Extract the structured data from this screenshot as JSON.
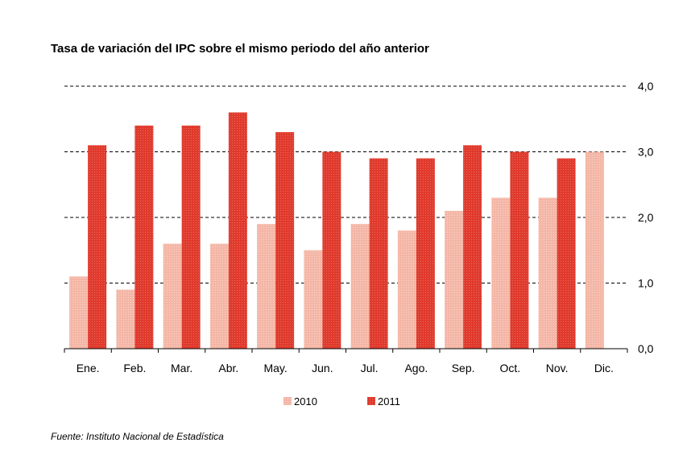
{
  "chart_data": {
    "type": "bar",
    "title": "Tasa de variación del IPC sobre el mismo periodo del año anterior",
    "categories": [
      "Ene.",
      "Feb.",
      "Mar.",
      "Abr.",
      "May.",
      "Jun.",
      "Jul.",
      "Ago.",
      "Sep.",
      "Oct.",
      "Nov.",
      "Dic."
    ],
    "series": [
      {
        "name": "2010",
        "color": "#f4b6a6",
        "values": [
          1.1,
          0.9,
          1.6,
          1.6,
          1.9,
          1.5,
          1.9,
          1.8,
          2.1,
          2.3,
          2.3,
          3.0
        ]
      },
      {
        "name": "2011",
        "color": "#e03a2c",
        "values": [
          3.1,
          3.4,
          3.4,
          3.6,
          3.3,
          3.0,
          2.9,
          2.9,
          3.1,
          3.0,
          2.9,
          null
        ]
      }
    ],
    "y_ticks": [
      "0,0",
      "1,0",
      "2,0",
      "3,0",
      "4,0"
    ],
    "ylim": [
      0,
      4
    ],
    "y_axis_side": "right",
    "grid": "dashed horizontal",
    "legend": "bottom-center"
  },
  "source": "Fuente: Instituto Nacional de Estadística"
}
